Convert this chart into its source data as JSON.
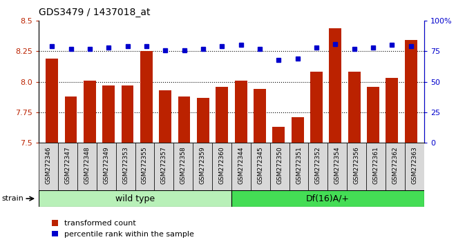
{
  "title": "GDS3479 / 1437018_at",
  "samples": [
    "GSM272346",
    "GSM272347",
    "GSM272348",
    "GSM272349",
    "GSM272353",
    "GSM272355",
    "GSM272357",
    "GSM272358",
    "GSM272359",
    "GSM272360",
    "GSM272344",
    "GSM272345",
    "GSM272350",
    "GSM272351",
    "GSM272352",
    "GSM272354",
    "GSM272356",
    "GSM272361",
    "GSM272362",
    "GSM272363"
  ],
  "red_values": [
    8.19,
    7.88,
    8.01,
    7.97,
    7.97,
    8.25,
    7.93,
    7.88,
    7.87,
    7.96,
    8.01,
    7.94,
    7.63,
    7.71,
    8.08,
    8.44,
    8.08,
    7.96,
    8.03,
    8.34
  ],
  "blue_values": [
    79,
    77,
    77,
    78,
    79,
    79,
    76,
    76,
    77,
    79,
    80,
    77,
    68,
    69,
    78,
    81,
    77,
    78,
    80,
    79
  ],
  "wt_count": 10,
  "df_count": 10,
  "groups": [
    {
      "label": "wild type",
      "color_face": "#b8f0b8",
      "color_edge": "#44bb44"
    },
    {
      "label": "Df(16)A/+",
      "color_face": "#44dd55",
      "color_edge": "#44bb44"
    }
  ],
  "ylim_left": [
    7.5,
    8.5
  ],
  "ylim_right": [
    0,
    100
  ],
  "yticks_left": [
    7.5,
    7.75,
    8.0,
    8.25,
    8.5
  ],
  "yticks_right": [
    0,
    25,
    50,
    75,
    100
  ],
  "ytick_labels_right": [
    "0",
    "25",
    "50",
    "75",
    "100%"
  ],
  "hgrid_lines": [
    7.75,
    8.0,
    8.25
  ],
  "bar_color": "#bb2200",
  "dot_color": "#0000cc",
  "legend_red": "transformed count",
  "legend_blue": "percentile rank within the sample",
  "strain_label": "strain",
  "xtick_bg": "#d8d8d8"
}
